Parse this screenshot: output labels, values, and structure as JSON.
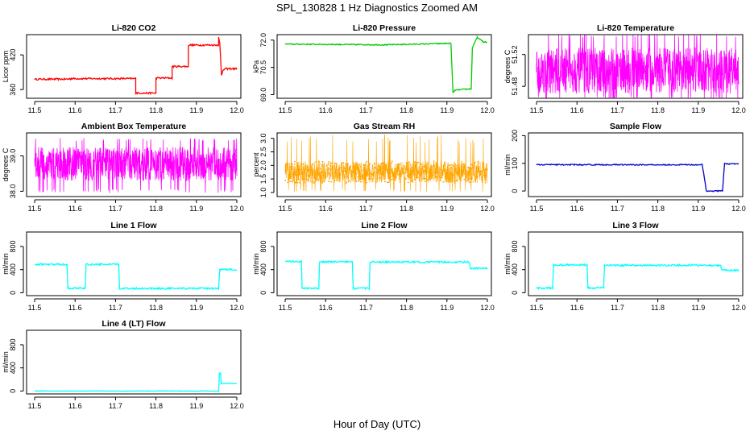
{
  "figure": {
    "title": "SPL_130828  1 Hz Diagnostics Zoomed AM",
    "xlabel": "Hour of Day (UTC)"
  },
  "chart_data": [
    {
      "type": "line",
      "title": "Li-820 CO2",
      "ylabel": "Licor ppm",
      "color": "#ff0000",
      "xlim": [
        11.48,
        12.01
      ],
      "ylim": [
        345,
        455
      ],
      "xticks": [
        "11.5",
        "11.6",
        "11.7",
        "11.8",
        "11.9",
        "12.0"
      ],
      "yticks": [
        "360",
        "420"
      ],
      "ytick_values": [
        360,
        420
      ],
      "x": [
        11.5,
        11.58,
        11.59,
        11.75,
        11.75,
        11.8,
        11.8,
        11.84,
        11.84,
        11.88,
        11.88,
        11.955,
        11.955,
        11.958,
        11.962,
        11.965,
        11.97,
        12.0
      ],
      "y": [
        378,
        378,
        379,
        379,
        354,
        354,
        380,
        380,
        400,
        400,
        437,
        437,
        450,
        440,
        386,
        391,
        396,
        396
      ],
      "noise": 1.5
    },
    {
      "type": "line",
      "title": "Li-820 Pressure",
      "ylabel": "kPa",
      "color": "#00cc00",
      "xlim": [
        11.48,
        12.01
      ],
      "ylim": [
        68.8,
        72.3
      ],
      "xticks": [
        "11.5",
        "11.6",
        "11.7",
        "11.8",
        "11.9",
        "12.0"
      ],
      "yticks": [
        "69.0",
        "70.5",
        "72.0"
      ],
      "ytick_values": [
        69.0,
        70.5,
        72.0
      ],
      "x": [
        11.5,
        11.75,
        11.91,
        11.915,
        11.92,
        11.96,
        11.963,
        11.975,
        11.99,
        12.0
      ],
      "y": [
        71.78,
        71.74,
        71.82,
        69.1,
        69.25,
        69.32,
        71.6,
        72.15,
        71.9,
        71.88
      ],
      "noise": 0.03
    },
    {
      "type": "line",
      "title": "Li-820 Temperature",
      "ylabel": "degrees C",
      "color": "#ff00ff",
      "xlim": [
        11.48,
        12.01
      ],
      "ylim": [
        51.465,
        51.545
      ],
      "xticks": [
        "11.5",
        "11.6",
        "11.7",
        "11.8",
        "11.9",
        "12.0"
      ],
      "yticks": [
        "51.48",
        "51.52"
      ],
      "ytick_values": [
        51.48,
        51.52
      ],
      "x": [
        11.5,
        12.0
      ],
      "y": [
        51.5,
        51.5
      ],
      "band": [
        51.471,
        51.5285
      ],
      "spike_hi": 51.548,
      "spike_lo": 51.465,
      "noise": 0
    },
    {
      "type": "line",
      "title": "Ambient Box Temperature",
      "ylabel": "degrees C",
      "color": "#ff00ff",
      "xlim": [
        11.48,
        12.01
      ],
      "ylim": [
        37.85,
        39.65
      ],
      "xticks": [
        "11.5",
        "11.6",
        "11.7",
        "11.8",
        "11.9",
        "12.0"
      ],
      "yticks": [
        "38.0",
        "39.0"
      ],
      "ytick_values": [
        38.0,
        39.0
      ],
      "x": [
        11.5,
        12.0
      ],
      "y": [
        38.75,
        38.75
      ],
      "band": [
        38.3,
        39.25
      ],
      "spike_hi": 39.5,
      "spike_lo": 37.95,
      "noise": 0.35
    },
    {
      "type": "line",
      "title": "Gas Stream RH",
      "ylabel": "percent",
      "color": "#ffa500",
      "xlim": [
        11.48,
        12.01
      ],
      "ylim": [
        0.85,
        3.2
      ],
      "xticks": [
        "11.5",
        "11.6",
        "11.7",
        "11.8",
        "11.9",
        "12.0"
      ],
      "yticks": [
        "1.0",
        "1.5",
        "2.0",
        "2.5",
        "3.0"
      ],
      "ytick_values": [
        1.0,
        1.5,
        2.0,
        2.5,
        3.0
      ],
      "x": [
        11.5,
        12.0
      ],
      "y": [
        1.75,
        1.75
      ],
      "band": [
        1.35,
        2.15
      ],
      "spike_hi": 3.15,
      "spike_lo": 1.0,
      "noise": 0.35,
      "points": true
    },
    {
      "type": "line",
      "title": "Sample Flow",
      "ylabel": "ml/min",
      "color": "#0000cc",
      "xlim": [
        11.48,
        12.01
      ],
      "ylim": [
        -20,
        210
      ],
      "xticks": [
        "11.5",
        "11.6",
        "11.7",
        "11.8",
        "11.9",
        "12.0"
      ],
      "yticks": [
        "0",
        "100",
        "200"
      ],
      "ytick_values": [
        0,
        100,
        200
      ],
      "x": [
        11.5,
        11.91,
        11.92,
        11.96,
        11.965,
        12.0
      ],
      "y": [
        95,
        95,
        0,
        0,
        98,
        98
      ],
      "noise": 2
    },
    {
      "type": "line",
      "title": "Line 1 Flow",
      "ylabel": "ml/min",
      "color": "#00ffff",
      "xlim": [
        11.48,
        12.01
      ],
      "ylim": [
        -50,
        1050
      ],
      "xticks": [
        "11.5",
        "11.6",
        "11.7",
        "11.8",
        "11.9",
        "12.0"
      ],
      "yticks": [
        "0",
        "400",
        "800"
      ],
      "ytick_values": [
        0,
        400,
        800
      ],
      "x": [
        11.5,
        11.58,
        11.582,
        11.625,
        11.627,
        11.708,
        11.71,
        11.955,
        11.958,
        12.0
      ],
      "y": [
        490,
        490,
        80,
        80,
        490,
        490,
        75,
        75,
        400,
        400
      ],
      "noise": 15
    },
    {
      "type": "line",
      "title": "Line 2 Flow",
      "ylabel": "ml/min",
      "color": "#00ffff",
      "xlim": [
        11.48,
        12.01
      ],
      "ylim": [
        -50,
        1050
      ],
      "xticks": [
        "11.5",
        "11.6",
        "11.7",
        "11.8",
        "11.9",
        "12.0"
      ],
      "yticks": [
        "0",
        "400",
        "800"
      ],
      "ytick_values": [
        0,
        400,
        800
      ],
      "x": [
        11.5,
        11.54,
        11.542,
        11.583,
        11.585,
        11.666,
        11.668,
        11.708,
        11.71,
        11.955,
        11.958,
        12.0
      ],
      "y": [
        540,
        540,
        75,
        75,
        535,
        535,
        75,
        75,
        530,
        530,
        420,
        420
      ],
      "noise": 15
    },
    {
      "type": "line",
      "title": "Line 3 Flow",
      "ylabel": "ml/min",
      "color": "#00ffff",
      "xlim": [
        11.48,
        12.01
      ],
      "ylim": [
        -50,
        1050
      ],
      "xticks": [
        "11.5",
        "11.6",
        "11.7",
        "11.8",
        "11.9",
        "12.0"
      ],
      "yticks": [
        "0",
        "400",
        "800"
      ],
      "ytick_values": [
        0,
        400,
        800
      ],
      "x": [
        11.5,
        11.54,
        11.542,
        11.625,
        11.627,
        11.666,
        11.668,
        11.955,
        11.958,
        12.0
      ],
      "y": [
        80,
        80,
        480,
        480,
        80,
        80,
        475,
        475,
        390,
        390
      ],
      "noise": 15
    },
    {
      "type": "line",
      "title": "Line 4 (LT) Flow",
      "ylabel": "ml/min",
      "color": "#00ffff",
      "xlim": [
        11.48,
        12.01
      ],
      "ylim": [
        -50,
        1050
      ],
      "xticks": [
        "11.5",
        "11.6",
        "11.7",
        "11.8",
        "11.9",
        "12.0"
      ],
      "yticks": [
        "0",
        "400",
        "800"
      ],
      "ytick_values": [
        0,
        400,
        800
      ],
      "x": [
        11.5,
        11.955,
        11.957,
        11.96,
        11.961,
        12.0
      ],
      "y": [
        0,
        0,
        310,
        310,
        130,
        130
      ],
      "noise": 3
    }
  ]
}
